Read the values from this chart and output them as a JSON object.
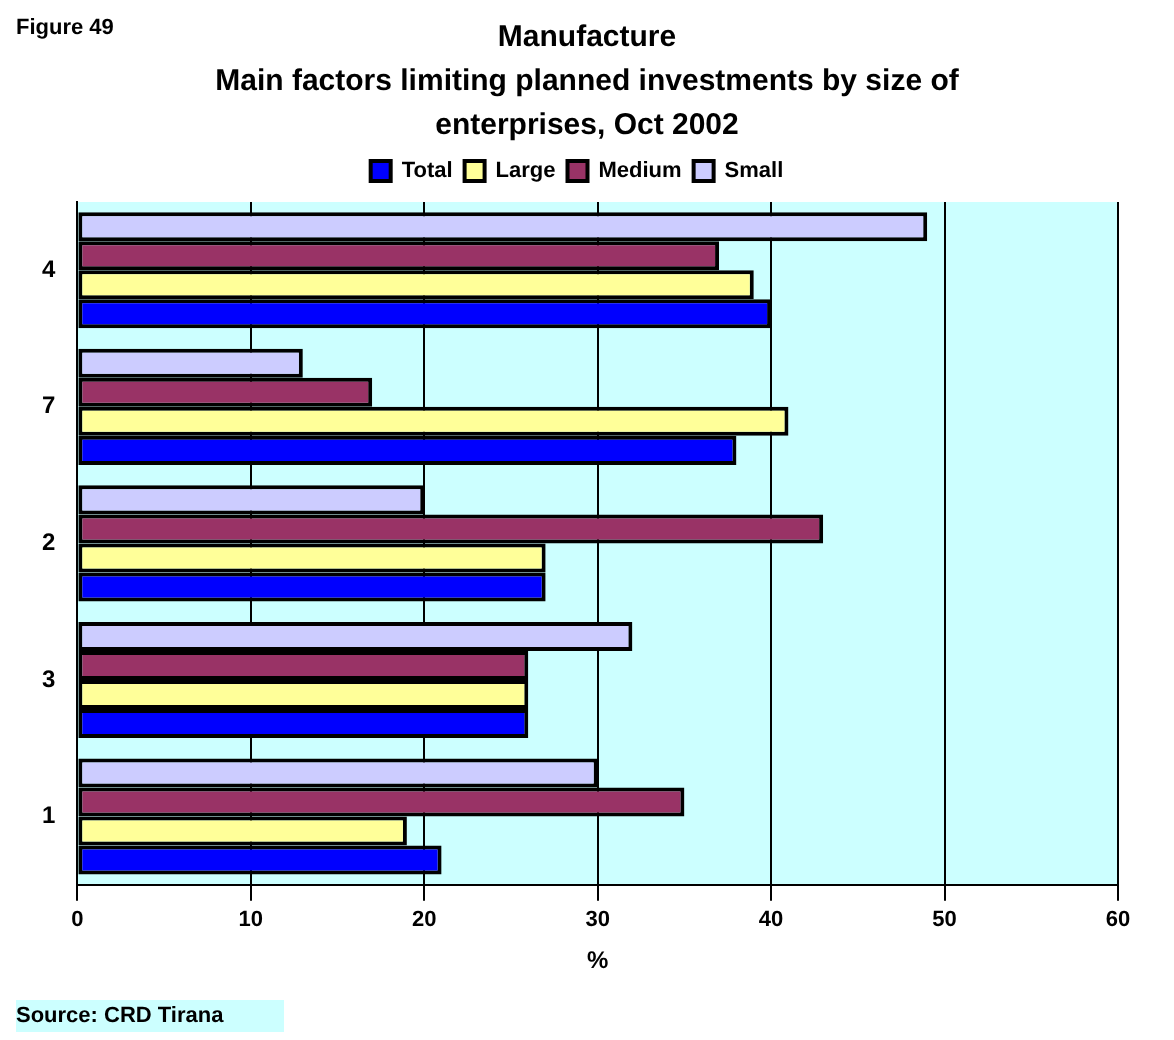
{
  "chart_data": {
    "type": "bar",
    "orientation": "horizontal",
    "title": "Manufacture\nMain factors limiting planned investments by size of enterprises, Oct 2002",
    "xlabel": "%",
    "annotations": [
      "Figure 49",
      "Source: CRD Tirana"
    ],
    "categories": [
      "4",
      "7",
      "2",
      "3",
      "1"
    ],
    "series": [
      {
        "name": "Total",
        "color": "#0000ff",
        "values": [
          40,
          38,
          27,
          26,
          21
        ]
      },
      {
        "name": "Large",
        "color": "#ffff99",
        "values": [
          39,
          41,
          27,
          26,
          19
        ]
      },
      {
        "name": "Medium",
        "color": "#993366",
        "values": [
          37,
          17,
          43,
          26,
          35
        ]
      },
      {
        "name": "Small",
        "color": "#ccccff",
        "values": [
          49,
          13,
          20,
          32,
          30
        ]
      }
    ],
    "xlim": [
      0,
      60
    ],
    "xticks": [
      0,
      10,
      20,
      30,
      40,
      50,
      60
    ],
    "grid": "x",
    "legend": "top"
  }
}
